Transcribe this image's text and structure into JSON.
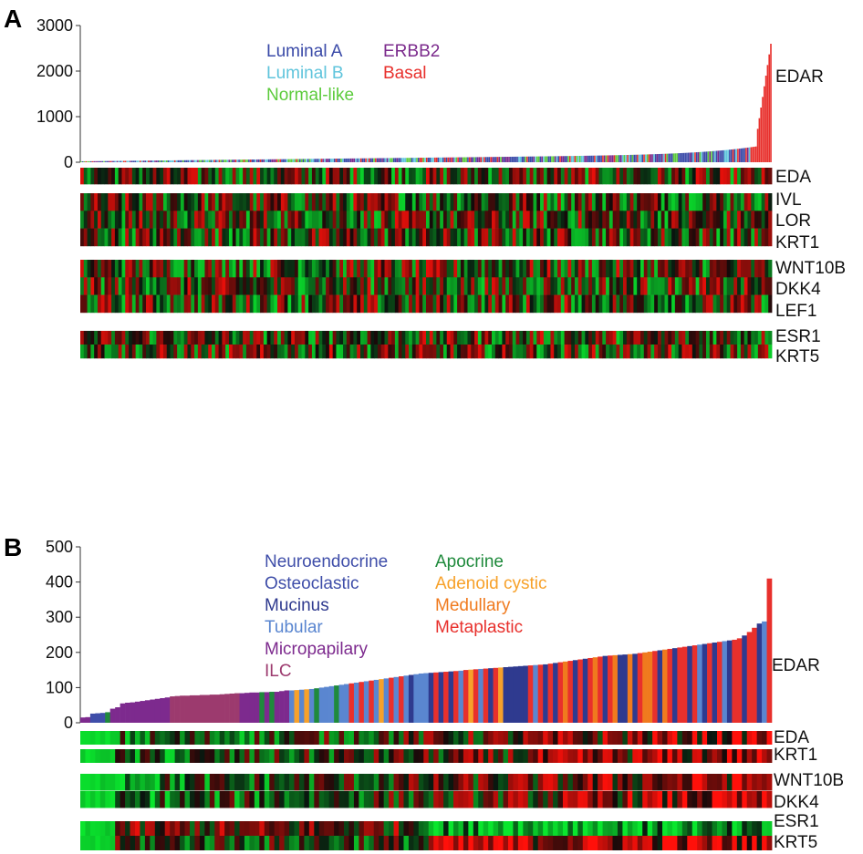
{
  "chart_data": [
    {
      "panel": "A",
      "type": "bar",
      "ylim": [
        0,
        3000
      ],
      "yticks": [
        0,
        1000,
        2000,
        3000
      ],
      "sample_count": 420,
      "bar_min": 20,
      "bar_max": 2600,
      "bar_label": "EDAR",
      "legend": [
        {
          "label": "Luminal A",
          "color": "#3a4aa8"
        },
        {
          "label": "Luminal B",
          "color": "#5fc4dc"
        },
        {
          "label": "Normal-like",
          "color": "#5ccb3c"
        },
        {
          "label": "ERBB2",
          "color": "#7b2a8c"
        },
        {
          "label": "Basal",
          "color": "#e8302c"
        }
      ],
      "heatmap_groups": [
        {
          "genes": [
            "EDA"
          ]
        },
        {
          "genes": [
            "IVL",
            "LOR",
            "KRT1"
          ]
        },
        {
          "genes": [
            "WNT10B",
            "DKK4",
            "LEF1"
          ]
        },
        {
          "genes": [
            "ESR1",
            "KRT5"
          ]
        }
      ]
    },
    {
      "panel": "B",
      "type": "bar",
      "ylim": [
        0,
        500
      ],
      "yticks": [
        0,
        100,
        200,
        300,
        400,
        500
      ],
      "bar_label": "EDAR",
      "legend": [
        {
          "label": "Neuroendocrine",
          "color": "#3f4ea9"
        },
        {
          "label": "Osteoclastic",
          "color": "#3f4ea9"
        },
        {
          "label": "Mucinus",
          "color": "#2f3a8f"
        },
        {
          "label": "Tubular",
          "color": "#5a86d0"
        },
        {
          "label": "Micropapilary",
          "color": "#7d2a8e"
        },
        {
          "label": "ILC",
          "color": "#9c3a6e"
        },
        {
          "label": "Apocrine",
          "color": "#1f8a3c"
        },
        {
          "label": "Adenoid cystic",
          "color": "#f7a12a"
        },
        {
          "label": "Medullary",
          "color": "#f07a1e"
        },
        {
          "label": "Metaplastic",
          "color": "#e8302c"
        }
      ],
      "categories": [
        "Micropapilary",
        "Micropapilary",
        "Osteoclastic",
        "Osteoclastic",
        "Neuroendocrine",
        "Apocrine",
        "Micropapilary",
        "Micropapilary",
        "Micropapilary",
        "Micropapilary",
        "Micropapilary",
        "Micropapilary",
        "Micropapilary",
        "Micropapilary",
        "Micropapilary",
        "Micropapilary",
        "Micropapilary",
        "Micropapilary",
        "ILC",
        "ILC",
        "ILC",
        "ILC",
        "ILC",
        "ILC",
        "ILC",
        "ILC",
        "ILC",
        "ILC",
        "ILC",
        "ILC",
        "ILC",
        "ILC",
        "Micropapilary",
        "Micropapilary",
        "Micropapilary",
        "Micropapilary",
        "Apocrine",
        "Micropapilary",
        "Apocrine",
        "Micropapilary",
        "Micropapilary",
        "Micropapilary",
        "Tubular",
        "Adenoid cystic",
        "Tubular",
        "Adenoid cystic",
        "Tubular",
        "Apocrine",
        "Tubular",
        "Tubular",
        "Tubular",
        "Apocrine",
        "Tubular",
        "Tubular",
        "Metaplastic",
        "Tubular",
        "Metaplastic",
        "Tubular",
        "Metaplastic",
        "Tubular",
        "Adenoid cystic",
        "Tubular",
        "Metaplastic",
        "Tubular",
        "Metaplastic",
        "Tubular",
        "Mucinus",
        "Tubular",
        "Tubular",
        "Tubular",
        "Mucinus",
        "Metaplastic",
        "Mucinus",
        "Metaplastic",
        "Mucinus",
        "Metaplastic",
        "Tubular",
        "Metaplastic",
        "Adenoid cystic",
        "Metaplastic",
        "Tubular",
        "Metaplastic",
        "Mucinus",
        "Metaplastic",
        "Adenoid cystic",
        "Mucinus",
        "Mucinus",
        "Mucinus",
        "Mucinus",
        "Mucinus",
        "Metaplastic",
        "Tubular",
        "Metaplastic",
        "Mucinus",
        "Metaplastic",
        "Mucinus",
        "Metaplastic",
        "Medullary",
        "Metaplastic",
        "Mucinus",
        "Metaplastic",
        "Mucinus",
        "Metaplastic",
        "Medullary",
        "Metaplastic",
        "Mucinus",
        "Metaplastic",
        "Medullary",
        "Mucinus",
        "Mucinus",
        "Medullary",
        "Mucinus",
        "Metaplastic",
        "Medullary",
        "Medullary",
        "Metaplastic",
        "Mucinus",
        "Medullary",
        "Metaplastic",
        "Mucinus",
        "Metaplastic",
        "Metaplastic",
        "Mucinus",
        "Metaplastic",
        "Tubular",
        "Mucinus",
        "Metaplastic",
        "Mucinus",
        "Metaplastic",
        "Tubular",
        "Mucinus",
        "Metaplastic",
        "Metaplastic",
        "Mucinus",
        "Metaplastic",
        "Metaplastic",
        "Mucinus",
        "Tubular",
        "Metaplastic"
      ],
      "values": [
        15,
        16,
        26,
        27,
        28,
        30,
        40,
        44,
        55,
        57,
        58,
        60,
        62,
        64,
        66,
        68,
        70,
        72,
        75,
        76,
        77,
        77,
        78,
        78,
        79,
        79,
        80,
        80,
        81,
        82,
        83,
        84,
        84,
        85,
        86,
        86,
        87,
        87,
        88,
        88,
        90,
        92,
        92,
        93,
        94,
        95,
        96,
        98,
        100,
        102,
        104,
        106,
        108,
        110,
        112,
        114,
        116,
        118,
        120,
        122,
        124,
        126,
        128,
        130,
        132,
        134,
        136,
        138,
        140,
        141,
        142,
        143,
        144,
        145,
        146,
        147,
        148,
        150,
        151,
        152,
        153,
        154,
        155,
        156,
        157,
        158,
        159,
        160,
        161,
        162,
        163,
        164,
        165,
        166,
        168,
        170,
        172,
        174,
        176,
        178,
        180,
        182,
        184,
        186,
        188,
        190,
        191,
        192,
        193,
        194,
        195,
        196,
        198,
        200,
        202,
        204,
        206,
        208,
        210,
        212,
        214,
        216,
        218,
        220,
        222,
        224,
        226,
        228,
        230,
        232,
        234,
        236,
        240,
        248,
        258,
        270,
        282,
        288,
        410
      ]
    }
  ]
}
